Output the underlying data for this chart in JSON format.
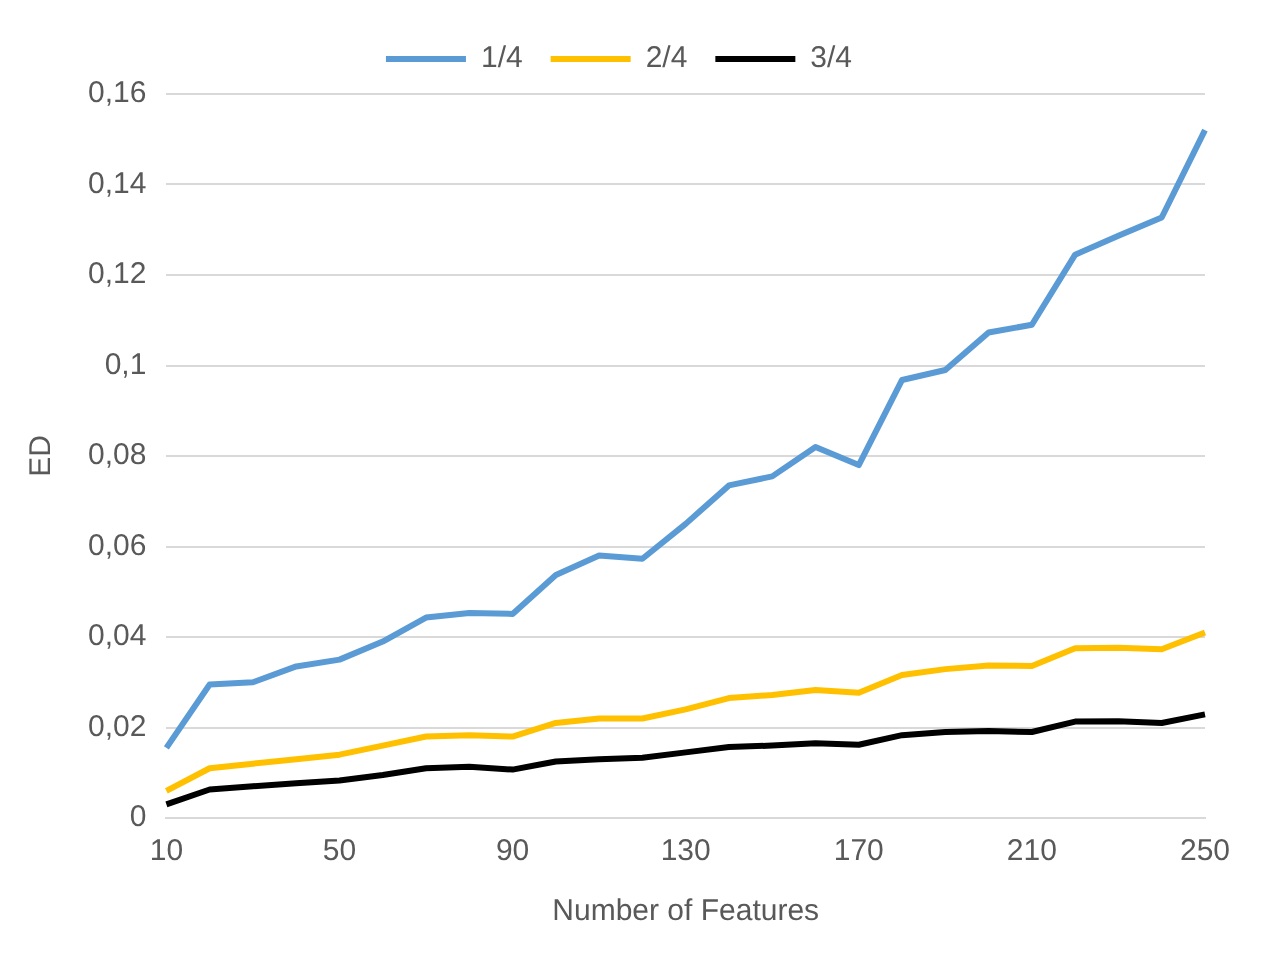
{
  "chart_data": {
    "type": "line",
    "xlabel": "Number of Features",
    "ylabel": "ED",
    "categories": [
      "10",
      null,
      null,
      null,
      "50",
      null,
      null,
      null,
      "90",
      null,
      null,
      null,
      "130",
      null,
      null,
      null,
      "170",
      null,
      null,
      null,
      "210",
      null,
      null,
      null,
      "250"
    ],
    "series": [
      {
        "name": "1/4",
        "color": "#5b9bd5",
        "values": [
          0.0155,
          0.0295,
          0.03,
          0.0335,
          0.035,
          0.039,
          0.0443,
          0.0453,
          0.0451,
          0.0537,
          0.058,
          0.0573,
          0.065,
          0.0735,
          0.0755,
          0.082,
          0.078,
          0.0968,
          0.099,
          0.1073,
          0.109,
          0.1245,
          0.1287,
          0.1327,
          0.152
        ]
      },
      {
        "name": "2/4",
        "color": "#ffc000",
        "values": [
          0.006,
          0.011,
          0.012,
          0.013,
          0.014,
          0.016,
          0.018,
          0.0183,
          0.018,
          0.021,
          0.022,
          0.022,
          0.024,
          0.0265,
          0.0272,
          0.0283,
          0.0277,
          0.0316,
          0.0329,
          0.0337,
          0.0336,
          0.0375,
          0.0376,
          0.0373,
          0.041
        ]
      },
      {
        "name": "3/4",
        "color": "#000000",
        "values": [
          0.003,
          0.0063,
          0.007,
          0.0077,
          0.0083,
          0.0095,
          0.011,
          0.0113,
          0.0107,
          0.0125,
          0.013,
          0.0133,
          0.0145,
          0.0157,
          0.016,
          0.0165,
          0.0162,
          0.0183,
          0.019,
          0.0192,
          0.019,
          0.0213,
          0.0214,
          0.021,
          0.0229
        ]
      }
    ],
    "ylim": [
      0,
      0.16
    ],
    "yticks": [
      0,
      {
        "value": 0.02,
        "label": "0,02"
      },
      {
        "value": 0.04,
        "label": "0,04"
      },
      {
        "value": 0.06,
        "label": "0,06"
      },
      {
        "value": 0.08,
        "label": "0,08"
      },
      {
        "value": 0.1,
        "label": "0,1"
      },
      {
        "value": 0.12,
        "label": "0,12"
      },
      {
        "value": 0.14,
        "label": "0,14"
      },
      {
        "value": 0.16,
        "label": "0,16"
      }
    ],
    "grid": "y",
    "legend": "top",
    "marker": "none",
    "line_style": "solid"
  }
}
